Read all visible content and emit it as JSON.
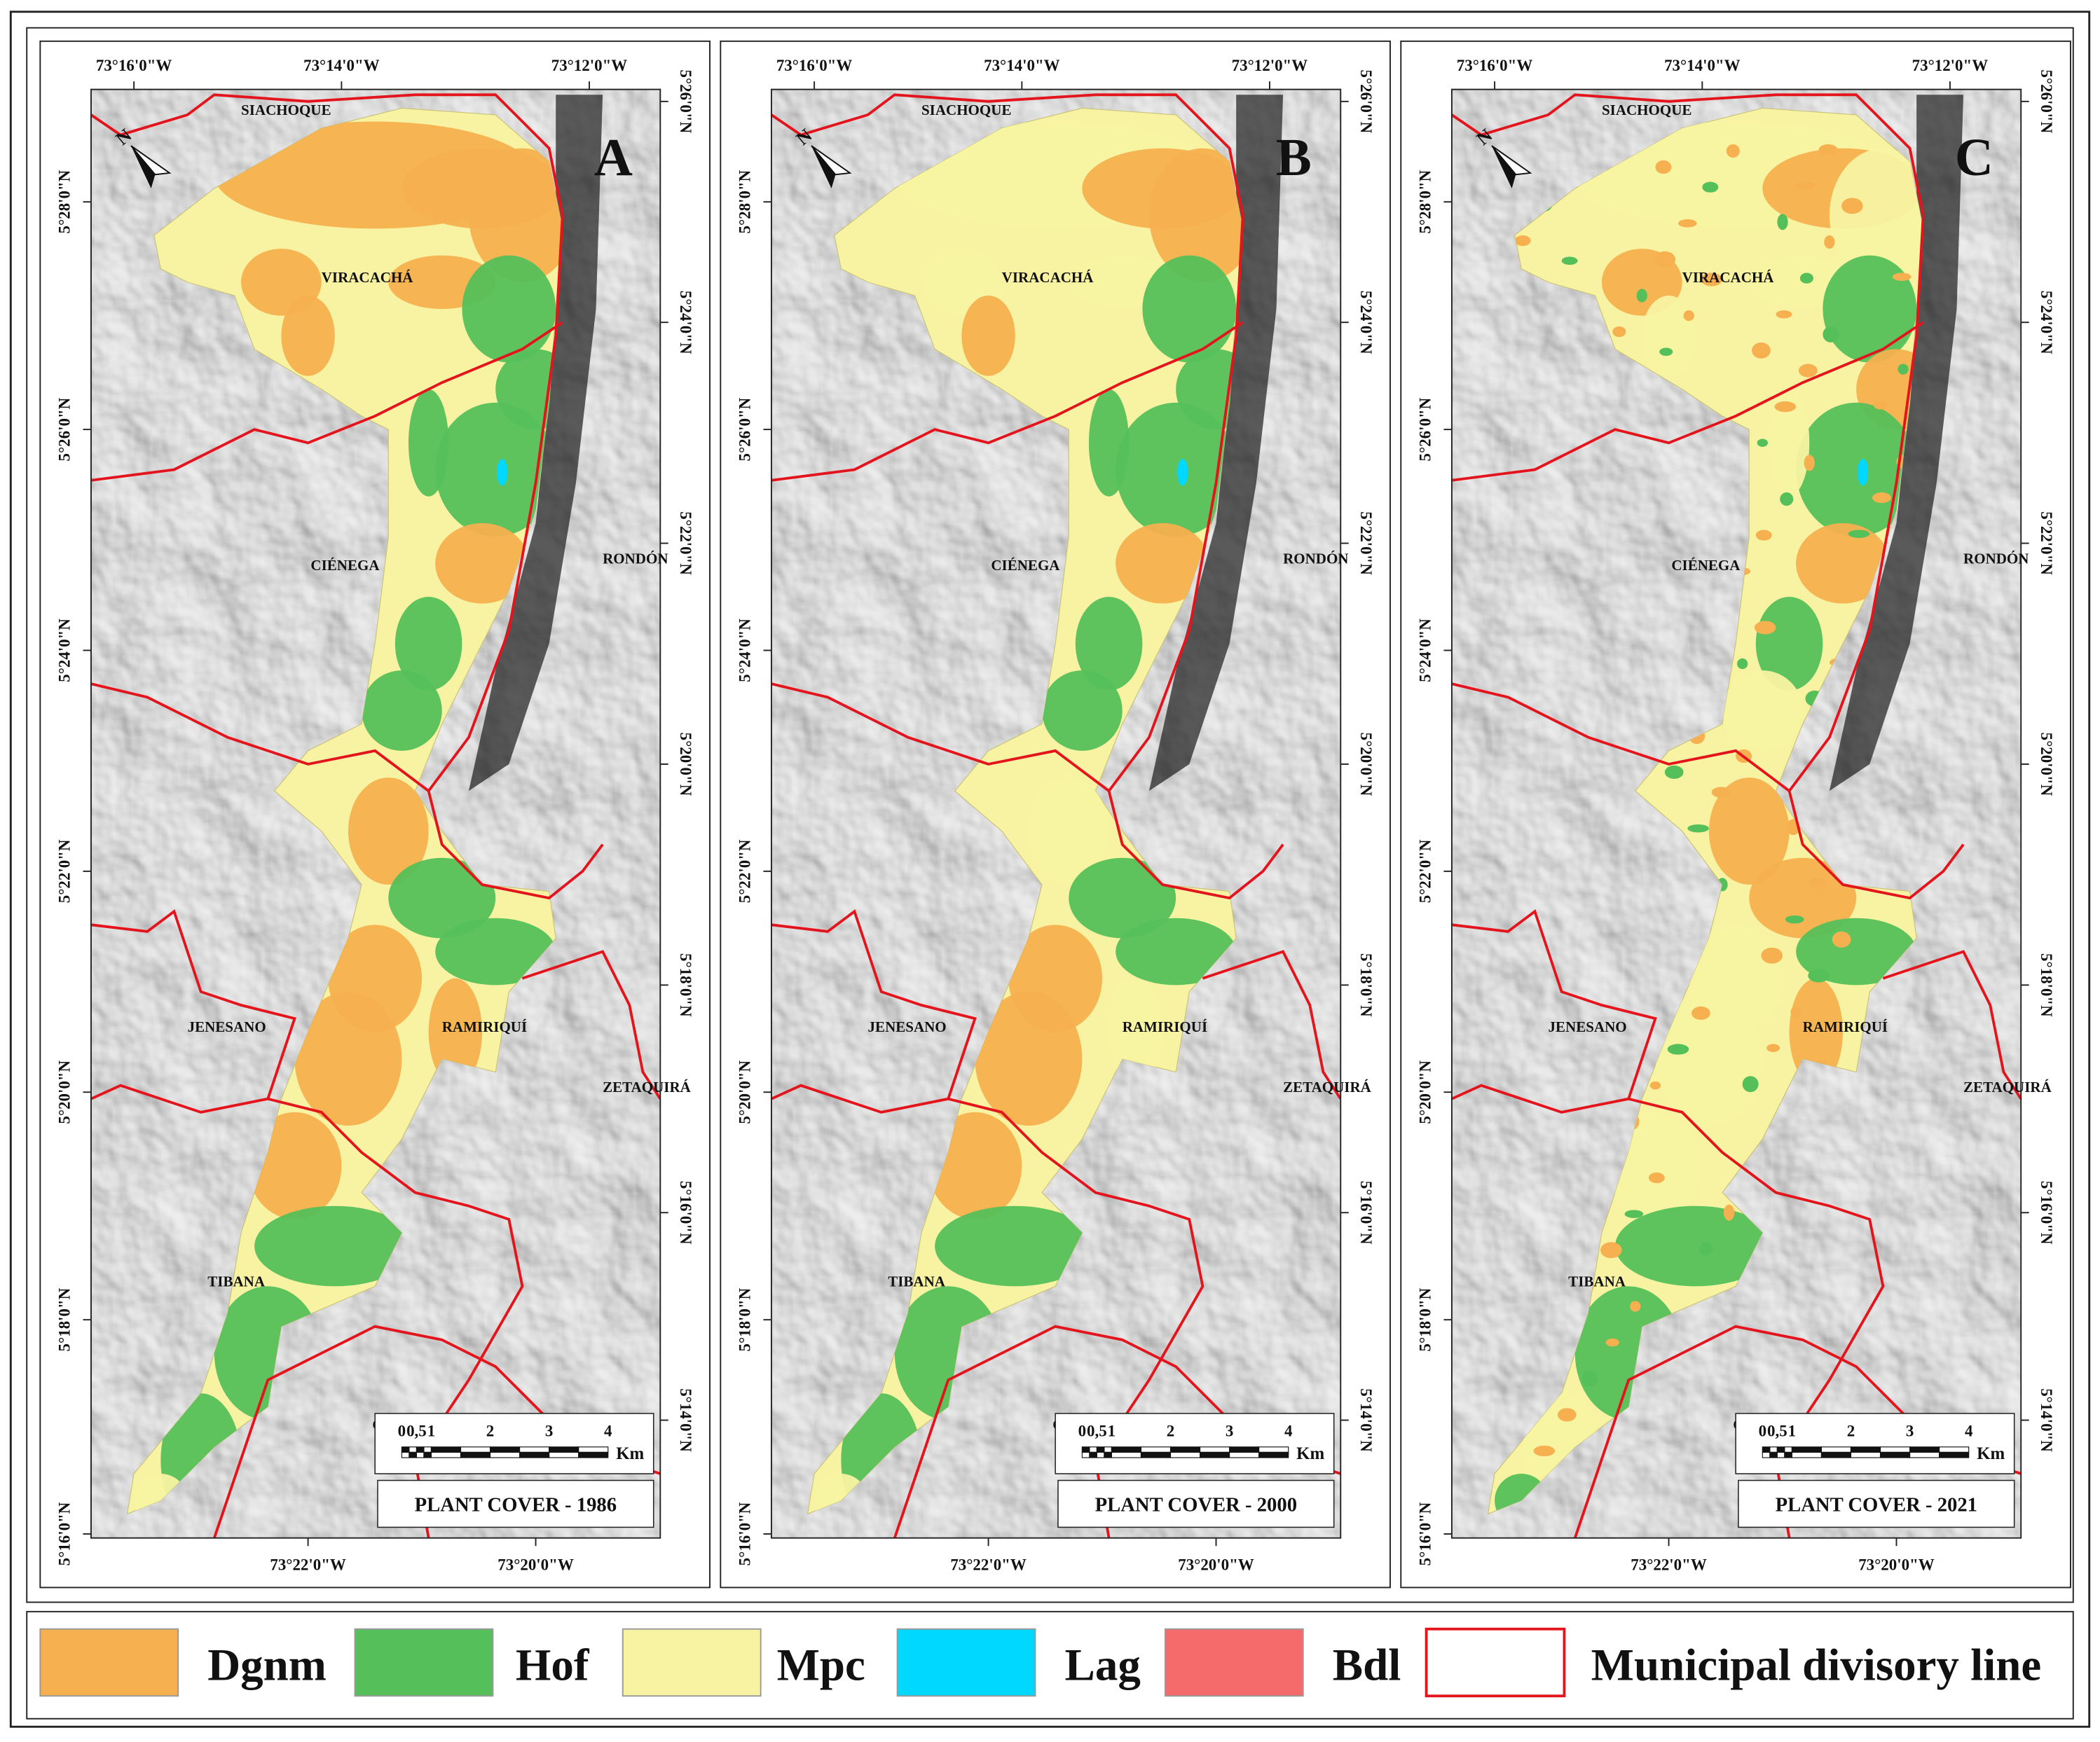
{
  "panels": [
    {
      "label": "A",
      "title": "PLANT COVER - 1986"
    },
    {
      "label": "B",
      "title": "PLANT COVER - 2000"
    },
    {
      "label": "C",
      "title": "PLANT COVER - 2021"
    }
  ],
  "map_frame": {
    "top_labels": [
      "73°16'0\"W",
      "73°14'0\"W",
      "73°12'0\"W"
    ],
    "bottom_labels": [
      "73°22'0\"W",
      "73°20'0\"W"
    ],
    "left_labels": [
      "5°28'0\"N",
      "5°26'0\"N",
      "5°24'0\"N",
      "5°22'0\"N",
      "5°20'0\"N",
      "5°18'0\"N",
      "5°16'0\"N"
    ],
    "right_labels": [
      "5°26'0\"N",
      "5°24'0\"N",
      "5°22'0\"N",
      "5°20'0\"N",
      "5°18'0\"N",
      "5°16'0\"N",
      "5°14'0\"N"
    ],
    "north": "N",
    "scale_ticks": [
      "0",
      "0,5",
      "1",
      "2",
      "3",
      "4"
    ],
    "scale_unit": "Km"
  },
  "places": [
    "SIACHOQUE",
    "VIRACACHÁ",
    "CIÉNEGA",
    "RONDÓN",
    "RAMIRIQUÍ",
    "JENESANO",
    "ZETAQUIRÁ",
    "TIBANA",
    "CHI"
  ],
  "legend": [
    {
      "label": "Dgnm",
      "color": "#f6b04f"
    },
    {
      "label": "Hof",
      "color": "#55c05a"
    },
    {
      "label": "Mpc",
      "color": "#f7f3a2"
    },
    {
      "label": "Lag",
      "color": "#00d8ff"
    },
    {
      "label": "Bdl",
      "color": "#f56a6a"
    },
    {
      "label": "Municipal divisory line",
      "color": "#e3141c"
    }
  ]
}
